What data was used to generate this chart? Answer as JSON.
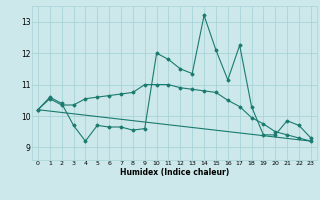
{
  "xlabel": "Humidex (Indice chaleur)",
  "bg_color": "#cce8eb",
  "line_color": "#1a7a6e",
  "grid_color": "#a8d4d8",
  "ylim": [
    8.6,
    13.5
  ],
  "xlim": [
    -0.5,
    23.5
  ],
  "yticks": [
    9,
    10,
    11,
    12,
    13
  ],
  "xticks": [
    0,
    1,
    2,
    3,
    4,
    5,
    6,
    7,
    8,
    9,
    10,
    11,
    12,
    13,
    14,
    15,
    16,
    17,
    18,
    19,
    20,
    21,
    22,
    23
  ],
  "line1_x": [
    0,
    1,
    2,
    3,
    4,
    5,
    6,
    7,
    8,
    9,
    10,
    11,
    12,
    13,
    14,
    15,
    16,
    17,
    18,
    19,
    20,
    21,
    22,
    23
  ],
  "line1_y": [
    10.2,
    10.6,
    10.4,
    9.7,
    9.2,
    9.7,
    9.65,
    9.65,
    9.55,
    9.6,
    12.0,
    11.8,
    11.5,
    11.35,
    13.2,
    12.1,
    11.15,
    12.25,
    10.3,
    9.4,
    9.4,
    9.85,
    9.7,
    9.3
  ],
  "line2_x": [
    0,
    1,
    2,
    3,
    4,
    5,
    6,
    7,
    8,
    9,
    10,
    11,
    12,
    13,
    14,
    15,
    16,
    17,
    18,
    19,
    20,
    21,
    22,
    23
  ],
  "line2_y": [
    10.2,
    10.55,
    10.35,
    10.35,
    10.55,
    10.6,
    10.65,
    10.7,
    10.75,
    11.0,
    11.0,
    11.0,
    10.9,
    10.85,
    10.8,
    10.75,
    10.5,
    10.3,
    9.95,
    9.75,
    9.5,
    9.4,
    9.3,
    9.2
  ],
  "line3_x": [
    0,
    23
  ],
  "line3_y": [
    10.2,
    9.2
  ]
}
